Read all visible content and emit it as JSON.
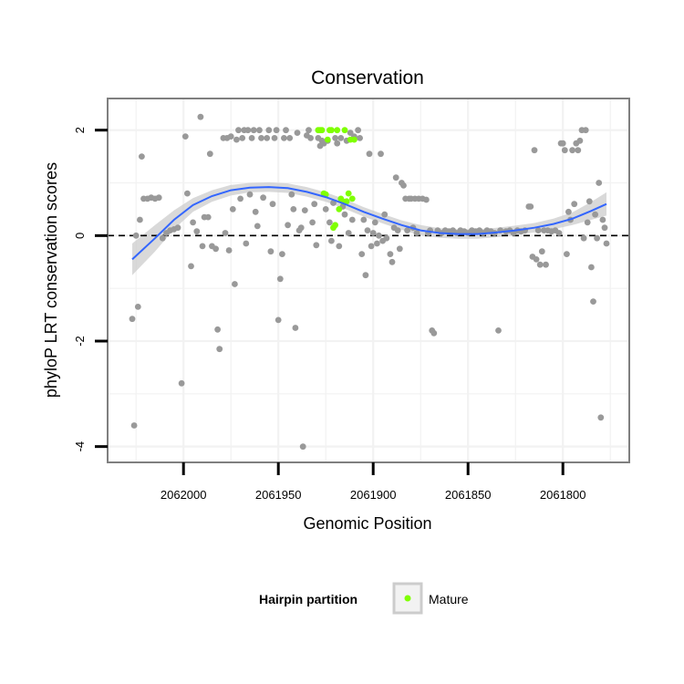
{
  "chart_data": {
    "type": "scatter",
    "title": "Conservation",
    "xlabel": "Genomic Position",
    "ylabel": "phyloP LRT conservation scores",
    "xlim": [
      2062040,
      2061765
    ],
    "x_reversed": true,
    "ylim": [
      -4.3,
      2.6
    ],
    "x_ticks": [
      2062000,
      2061950,
      2061900,
      2061850,
      2061800
    ],
    "x_tick_labels": [
      "2062000",
      "2061950",
      "2061900",
      "2061850",
      "2061800"
    ],
    "y_ticks": [
      -4,
      -2,
      0,
      2
    ],
    "y_tick_labels": [
      "-4",
      "-2",
      "0",
      "2"
    ],
    "reference_line": {
      "y": 0,
      "style": "dashed"
    },
    "legend": {
      "title": "Hairpin partition",
      "entries": [
        "Mature"
      ],
      "placement": "bottom"
    },
    "colors": {
      "other": "#999999",
      "mature": "#7fff00",
      "smooth": "#3366ff",
      "ribbon": "#cccccc"
    },
    "series": [
      {
        "name": "Other",
        "points": [
          [
            2062027,
            -1.58
          ],
          [
            2062026,
            -3.6
          ],
          [
            2062025,
            0.0
          ],
          [
            2062024,
            -1.35
          ],
          [
            2062023,
            0.3
          ],
          [
            2062022,
            1.5
          ],
          [
            2062021,
            0.7
          ],
          [
            2062019,
            0.7
          ],
          [
            2062017,
            0.72
          ],
          [
            2062015,
            0.7
          ],
          [
            2062013,
            0.72
          ],
          [
            2062011,
            -0.05
          ],
          [
            2062009,
            0.05
          ],
          [
            2062007,
            0.1
          ],
          [
            2062005,
            0.12
          ],
          [
            2062003,
            0.15
          ],
          [
            2062001,
            -2.8
          ],
          [
            2061999,
            1.88
          ],
          [
            2061998,
            0.8
          ],
          [
            2061996,
            -0.58
          ],
          [
            2061995,
            0.25
          ],
          [
            2061993,
            0.08
          ],
          [
            2061991,
            2.25
          ],
          [
            2061990,
            -0.2
          ],
          [
            2061989,
            0.35
          ],
          [
            2061987,
            0.35
          ],
          [
            2061986,
            1.55
          ],
          [
            2061985,
            -0.2
          ],
          [
            2061983,
            -0.25
          ],
          [
            2061982,
            -1.78
          ],
          [
            2061981,
            -2.15
          ],
          [
            2061979,
            1.85
          ],
          [
            2061978,
            0.05
          ],
          [
            2061977,
            1.85
          ],
          [
            2061976,
            -0.28
          ],
          [
            2061975,
            1.88
          ],
          [
            2061974,
            0.5
          ],
          [
            2061973,
            -0.92
          ],
          [
            2061972,
            1.82
          ],
          [
            2061971,
            2.0
          ],
          [
            2061970,
            0.7
          ],
          [
            2061969,
            1.85
          ],
          [
            2061968,
            2.0
          ],
          [
            2061967,
            -0.15
          ],
          [
            2061966,
            2.0
          ],
          [
            2061965,
            0.78
          ],
          [
            2061964,
            1.85
          ],
          [
            2061963,
            2.0
          ],
          [
            2061962,
            0.45
          ],
          [
            2061961,
            0.18
          ],
          [
            2061960,
            2.0
          ],
          [
            2061959,
            1.85
          ],
          [
            2061958,
            0.72
          ],
          [
            2061956,
            1.85
          ],
          [
            2061955,
            2.0
          ],
          [
            2061954,
            -0.3
          ],
          [
            2061953,
            0.6
          ],
          [
            2061952,
            1.85
          ],
          [
            2061951,
            2.0
          ],
          [
            2061950,
            -1.6
          ],
          [
            2061949,
            -0.82
          ],
          [
            2061948,
            -0.35
          ],
          [
            2061947,
            1.85
          ],
          [
            2061946,
            2.0
          ],
          [
            2061945,
            0.2
          ],
          [
            2061944,
            1.85
          ],
          [
            2061943,
            0.78
          ],
          [
            2061942,
            0.5
          ],
          [
            2061941,
            -1.75
          ],
          [
            2061940,
            1.95
          ],
          [
            2061939,
            0.1
          ],
          [
            2061938,
            0.15
          ],
          [
            2061937,
            -4.0
          ],
          [
            2061936,
            0.48
          ],
          [
            2061935,
            1.9
          ],
          [
            2061934,
            2.0
          ],
          [
            2061933,
            1.85
          ],
          [
            2061932,
            0.25
          ],
          [
            2061931,
            0.6
          ],
          [
            2061930,
            -0.18
          ],
          [
            2061929,
            1.85
          ],
          [
            2061928,
            1.7
          ],
          [
            2061927,
            1.8
          ],
          [
            2061926,
            1.75
          ],
          [
            2061925,
            0.5
          ],
          [
            2061924,
            1.8
          ],
          [
            2061923,
            0.25
          ],
          [
            2061922,
            -0.1
          ],
          [
            2061921,
            0.62
          ],
          [
            2061920,
            1.85
          ],
          [
            2061919,
            1.75
          ],
          [
            2061918,
            -0.2
          ],
          [
            2061917,
            1.85
          ],
          [
            2061916,
            0.55
          ],
          [
            2061915,
            0.4
          ],
          [
            2061914,
            1.8
          ],
          [
            2061913,
            0.05
          ],
          [
            2061912,
            1.95
          ],
          [
            2061911,
            0.3
          ],
          [
            2061910,
            1.88
          ],
          [
            2061908,
            2.0
          ],
          [
            2061907,
            1.85
          ],
          [
            2061906,
            -0.35
          ],
          [
            2061905,
            0.3
          ],
          [
            2061904,
            -0.75
          ],
          [
            2061903,
            0.1
          ],
          [
            2061902,
            1.55
          ],
          [
            2061901,
            -0.2
          ],
          [
            2061900,
            0.05
          ],
          [
            2061899,
            0.25
          ],
          [
            2061898,
            -0.15
          ],
          [
            2061897,
            0.0
          ],
          [
            2061896,
            1.55
          ],
          [
            2061895,
            -0.1
          ],
          [
            2061894,
            0.4
          ],
          [
            2061893,
            -0.05
          ],
          [
            2061891,
            -0.35
          ],
          [
            2061890,
            -0.5
          ],
          [
            2061889,
            0.15
          ],
          [
            2061888,
            1.1
          ],
          [
            2061887,
            0.1
          ],
          [
            2061886,
            -0.25
          ],
          [
            2061885,
            1.0
          ],
          [
            2061884,
            0.95
          ],
          [
            2061883,
            0.7
          ],
          [
            2061882,
            0.1
          ],
          [
            2061881,
            0.7
          ],
          [
            2061880,
            0.7
          ],
          [
            2061879,
            0.15
          ],
          [
            2061878,
            0.7
          ],
          [
            2061877,
            0.05
          ],
          [
            2061876,
            0.7
          ],
          [
            2061874,
            0.7
          ],
          [
            2061872,
            0.68
          ],
          [
            2061871,
            0.05
          ],
          [
            2061870,
            0.1
          ],
          [
            2061869,
            -1.8
          ],
          [
            2061868,
            -1.85
          ],
          [
            2061866,
            0.1
          ],
          [
            2061864,
            0.05
          ],
          [
            2061862,
            0.1
          ],
          [
            2061860,
            0.08
          ],
          [
            2061858,
            0.1
          ],
          [
            2061856,
            0.05
          ],
          [
            2061854,
            0.1
          ],
          [
            2061852,
            0.08
          ],
          [
            2061850,
            0.05
          ],
          [
            2061848,
            0.1
          ],
          [
            2061846,
            0.08
          ],
          [
            2061844,
            0.1
          ],
          [
            2061842,
            0.05
          ],
          [
            2061840,
            0.1
          ],
          [
            2061838,
            0.08
          ],
          [
            2061836,
            0.05
          ],
          [
            2061834,
            -1.8
          ],
          [
            2061833,
            0.1
          ],
          [
            2061830,
            0.08
          ],
          [
            2061828,
            0.1
          ],
          [
            2061826,
            0.05
          ],
          [
            2061824,
            0.1
          ],
          [
            2061822,
            0.08
          ],
          [
            2061820,
            0.1
          ],
          [
            2061818,
            0.55
          ],
          [
            2061817,
            0.55
          ],
          [
            2061816,
            -0.4
          ],
          [
            2061815,
            1.62
          ],
          [
            2061814,
            -0.45
          ],
          [
            2061813,
            0.1
          ],
          [
            2061812,
            -0.55
          ],
          [
            2061811,
            -0.3
          ],
          [
            2061810,
            0.1
          ],
          [
            2061809,
            -0.55
          ],
          [
            2061808,
            0.1
          ],
          [
            2061806,
            0.08
          ],
          [
            2061804,
            0.1
          ],
          [
            2061802,
            0.05
          ],
          [
            2061801,
            1.75
          ],
          [
            2061800,
            1.75
          ],
          [
            2061799,
            1.62
          ],
          [
            2061798,
            -0.35
          ],
          [
            2061797,
            0.45
          ],
          [
            2061796,
            0.3
          ],
          [
            2061795,
            1.62
          ],
          [
            2061794,
            0.6
          ],
          [
            2061793,
            1.75
          ],
          [
            2061792,
            1.62
          ],
          [
            2061791,
            1.8
          ],
          [
            2061790,
            2.0
          ],
          [
            2061789,
            -0.05
          ],
          [
            2061788,
            2.0
          ],
          [
            2061787,
            0.25
          ],
          [
            2061786,
            0.65
          ],
          [
            2061785,
            -0.6
          ],
          [
            2061784,
            -1.25
          ],
          [
            2061783,
            0.4
          ],
          [
            2061782,
            -0.05
          ],
          [
            2061781,
            1.0
          ],
          [
            2061780,
            -3.45
          ],
          [
            2061779,
            0.3
          ],
          [
            2061778,
            0.15
          ],
          [
            2061777,
            -0.15
          ]
        ]
      },
      {
        "name": "Mature",
        "points": [
          [
            2061929,
            2.0
          ],
          [
            2061928,
            2.0
          ],
          [
            2061927,
            2.0
          ],
          [
            2061926,
            0.8
          ],
          [
            2061925,
            0.78
          ],
          [
            2061924,
            1.82
          ],
          [
            2061923,
            2.0
          ],
          [
            2061922,
            2.0
          ],
          [
            2061921,
            0.15
          ],
          [
            2061920,
            0.2
          ],
          [
            2061919,
            2.0
          ],
          [
            2061918,
            0.5
          ],
          [
            2061917,
            0.7
          ],
          [
            2061916,
            0.65
          ],
          [
            2061915,
            2.0
          ],
          [
            2061914,
            0.65
          ],
          [
            2061913,
            0.8
          ],
          [
            2061912,
            1.82
          ],
          [
            2061911,
            0.7
          ],
          [
            2061910,
            1.82
          ]
        ]
      }
    ],
    "smooth": {
      "method": "loess",
      "points": [
        [
          2062027,
          -0.45,
          -0.75,
          -0.15
        ],
        [
          2062015,
          -0.05,
          -0.3,
          0.2
        ],
        [
          2062005,
          0.3,
          0.12,
          0.48
        ],
        [
          2061995,
          0.58,
          0.45,
          0.71
        ],
        [
          2061985,
          0.75,
          0.64,
          0.86
        ],
        [
          2061975,
          0.86,
          0.76,
          0.96
        ],
        [
          2061965,
          0.91,
          0.82,
          1.0
        ],
        [
          2061955,
          0.92,
          0.83,
          1.01
        ],
        [
          2061945,
          0.9,
          0.81,
          0.99
        ],
        [
          2061935,
          0.83,
          0.74,
          0.92
        ],
        [
          2061925,
          0.73,
          0.64,
          0.82
        ],
        [
          2061915,
          0.6,
          0.51,
          0.69
        ],
        [
          2061905,
          0.45,
          0.36,
          0.54
        ],
        [
          2061895,
          0.32,
          0.23,
          0.41
        ],
        [
          2061885,
          0.2,
          0.11,
          0.29
        ],
        [
          2061875,
          0.1,
          0.0,
          0.2
        ],
        [
          2061865,
          0.05,
          -0.04,
          0.14
        ],
        [
          2061855,
          0.03,
          -0.06,
          0.12
        ],
        [
          2061845,
          0.03,
          -0.06,
          0.12
        ],
        [
          2061835,
          0.06,
          -0.03,
          0.15
        ],
        [
          2061825,
          0.1,
          0.01,
          0.19
        ],
        [
          2061815,
          0.15,
          0.06,
          0.24
        ],
        [
          2061805,
          0.22,
          0.12,
          0.32
        ],
        [
          2061795,
          0.32,
          0.2,
          0.44
        ],
        [
          2061785,
          0.47,
          0.3,
          0.64
        ],
        [
          2061777,
          0.6,
          0.38,
          0.82
        ]
      ]
    }
  }
}
